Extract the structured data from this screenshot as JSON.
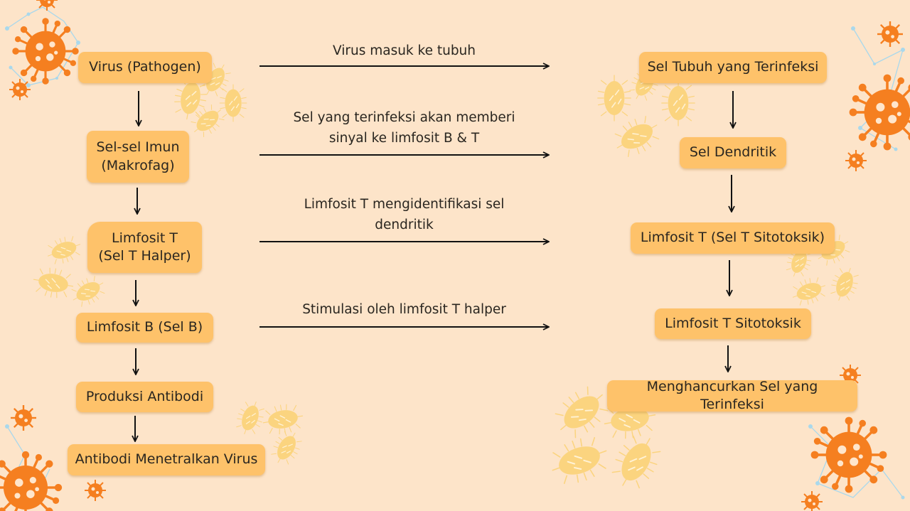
{
  "colors": {
    "background": "#fde4c9",
    "box_fill": "#fec26a",
    "virus_orange": "#f57f20",
    "bacteria_yellow": "#fbd277",
    "network_blue": "#a9d8ec",
    "arrow": "#111111"
  },
  "left_column": [
    "Virus (Pathogen)",
    "Sel-sel Imun\n(Makrofag)",
    "Limfosit T\n(Sel T Halper)",
    "Limfosit B (Sel B)",
    "Produksi Antibodi",
    "Antibodi Menetralkan Virus"
  ],
  "right_column": [
    "Sel Tubuh yang Terinfeksi",
    "Sel Dendritik",
    "Limfosit T (Sel T Sitotoksik)",
    "Limfosit T Sitotoksik",
    "Menghancurkan Sel yang Terinfeksi"
  ],
  "connections": [
    "Virus masuk ke tubuh",
    "Sel yang terinfeksi akan memberi\nsinyal ke limfosit B & T",
    "Limfosit T mengidentifikasi sel\ndendritik",
    "Stimulasi oleh limfosit T halper"
  ],
  "decorations": {
    "virus_icon": "virus-icon",
    "bacteria_icon": "bacteria-icon",
    "network_icon": "molecule-network-icon"
  }
}
